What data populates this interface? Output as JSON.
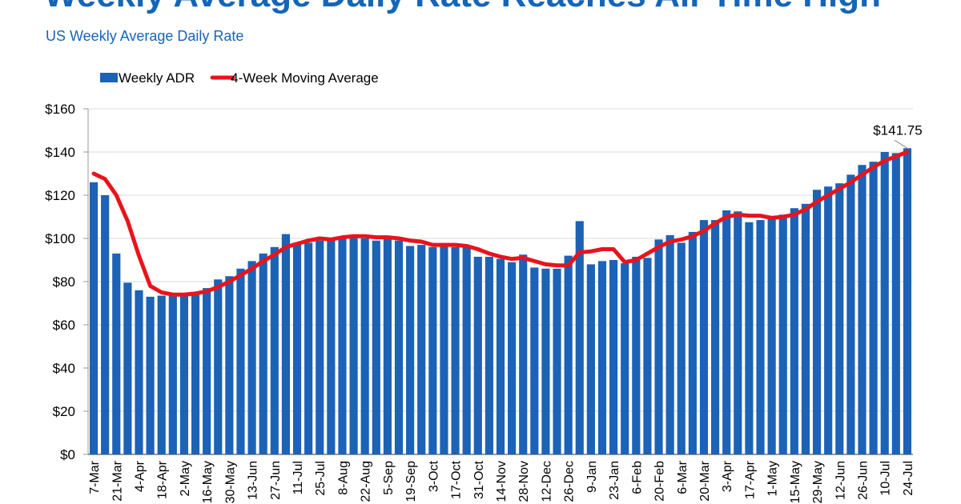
{
  "chart_data": {
    "type": "bar",
    "title": "Weekly Average Daily Rate Reaches All-Time High",
    "subtitle": "US Weekly Average Daily Rate",
    "categories": [
      "7-Mar",
      null,
      "21-Mar",
      null,
      "4-Apr",
      null,
      "18-Apr",
      null,
      "2-May",
      null,
      "16-May",
      null,
      "30-May",
      null,
      "13-Jun",
      null,
      "27-Jun",
      null,
      "11-Jul",
      null,
      "25-Jul",
      null,
      "8-Aug",
      null,
      "22-Aug",
      null,
      "5-Sep",
      null,
      "19-Sep",
      null,
      "3-Oct",
      null,
      "17-Oct",
      null,
      "31-Oct",
      null,
      "14-Nov",
      null,
      "28-Nov",
      null,
      "12-Dec",
      null,
      "26-Dec",
      null,
      "9-Jan",
      null,
      "23-Jan",
      null,
      "6-Feb",
      null,
      "20-Feb",
      null,
      "6-Mar",
      null,
      "20-Mar",
      null,
      "3-Apr",
      null,
      "17-Apr",
      null,
      "1-May",
      null,
      "15-May",
      null,
      "29-May",
      null,
      "12-Jun",
      null,
      "26-Jun",
      null,
      "10-Jul",
      null,
      "24-Jul"
    ],
    "series": [
      {
        "name": "Weekly ADR",
        "type": "bar",
        "color": "#1c62b6",
        "values": [
          126,
          120,
          93,
          79.5,
          76,
          73,
          73.5,
          74,
          74,
          75,
          77,
          81,
          82.5,
          86,
          89.5,
          93,
          96,
          102,
          98,
          98,
          99,
          99.5,
          101,
          101,
          100,
          99,
          100,
          99,
          96.5,
          97,
          96,
          97,
          96,
          96,
          91.5,
          91.5,
          90.5,
          89,
          92.5,
          86.5,
          86,
          86,
          92,
          108,
          88,
          89.5,
          90,
          88.5,
          91.5,
          91,
          99.5,
          101.5,
          98,
          103,
          108.5,
          108.5,
          113,
          112.5,
          107.5,
          108.5,
          109,
          111,
          114,
          116,
          122.5,
          124,
          125.5,
          129.5,
          134,
          135.5,
          140,
          139.5,
          141.75
        ],
        "value_labels": [
          null,
          null,
          null,
          null,
          null,
          null,
          null,
          null,
          null,
          null,
          null,
          null,
          null,
          null,
          null,
          null,
          null,
          null,
          null,
          null,
          null,
          null,
          null,
          null,
          null,
          null,
          null,
          null,
          null,
          null,
          null,
          null,
          null,
          null,
          null,
          null,
          null,
          null,
          null,
          null,
          null,
          null,
          null,
          null,
          null,
          null,
          null,
          null,
          null,
          null,
          null,
          null,
          null,
          null,
          null,
          null,
          null,
          null,
          null,
          null,
          null,
          null,
          null,
          null,
          null,
          null,
          null,
          null,
          null,
          null,
          null,
          null,
          "$141.75"
        ]
      },
      {
        "name": "4-Week Moving Average",
        "type": "line",
        "color": "#e8141c",
        "values": [
          130,
          127.5,
          120,
          108,
          92,
          78,
          75,
          74,
          74,
          74.5,
          75.5,
          77.5,
          80,
          83,
          86,
          89.5,
          92.5,
          96,
          97.5,
          99,
          100,
          99.5,
          100.5,
          101,
          101,
          100.5,
          100.5,
          100,
          99,
          98.5,
          97,
          97,
          97,
          96.5,
          95,
          93,
          91.5,
          90.5,
          91,
          89.5,
          88,
          87.5,
          87.5,
          93.5,
          94,
          95,
          95,
          89,
          90,
          93,
          96,
          98.5,
          99.5,
          101,
          103.5,
          107,
          110,
          111,
          110.5,
          110.5,
          109.5,
          110,
          111,
          113.5,
          117,
          120,
          123,
          126,
          129.5,
          133,
          136,
          138,
          140
        ]
      }
    ],
    "ylim": [
      0,
      160
    ],
    "yticks": [
      {
        "value": 0,
        "label": "$0"
      },
      {
        "value": 20,
        "label": "$20"
      },
      {
        "value": 40,
        "label": "$40"
      },
      {
        "value": 60,
        "label": "$60"
      },
      {
        "value": 80,
        "label": "$80"
      },
      {
        "value": 100,
        "label": "$100"
      },
      {
        "value": 120,
        "label": "$120"
      },
      {
        "value": 140,
        "label": "$140"
      },
      {
        "value": 160,
        "label": "$160"
      }
    ],
    "grid": true
  }
}
